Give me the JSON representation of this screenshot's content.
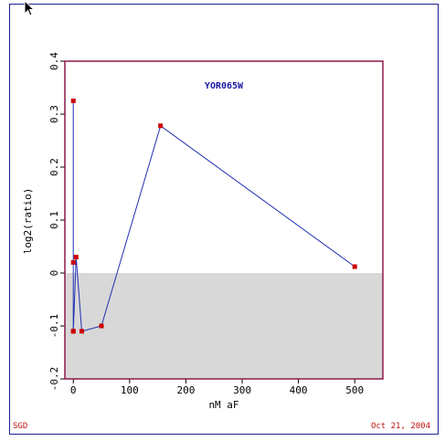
{
  "chart_data": {
    "type": "line",
    "title": "YOR065W",
    "xlabel": "nM aF",
    "ylabel": "log2(ratio)",
    "xlim": [
      -15,
      550
    ],
    "ylim": [
      -0.2,
      0.4
    ],
    "x_ticks": [
      0,
      100,
      200,
      300,
      400,
      500
    ],
    "y_ticks": [
      -0.2,
      -0.1,
      0,
      0.1,
      0.2,
      0.3,
      0.4
    ],
    "y_tick_labels": [
      "-0.2",
      "-0.1",
      "0",
      "0.1",
      "0.2",
      "0.3",
      "0.4"
    ],
    "negative_region_shaded": true,
    "series": [
      {
        "x": [
          0,
          0,
          0,
          0,
          5,
          15,
          50,
          155,
          500
        ],
        "y": [
          0.325,
          0.02,
          -0.11,
          -0.11,
          0.03,
          -0.11,
          -0.1,
          0.278,
          0.012
        ]
      }
    ],
    "colors": {
      "line": "#2030b0",
      "marker": "#cc0000",
      "plot_border": "#8b1a4a",
      "shade": "#d8d8d8",
      "title": "#1a1aa0"
    }
  },
  "footer": {
    "left": "SGD",
    "right": "Oct 21, 2004"
  }
}
